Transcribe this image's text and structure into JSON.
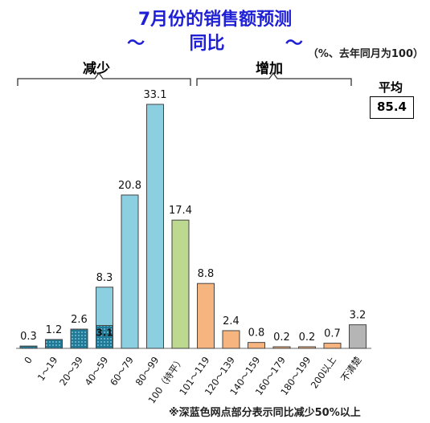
{
  "chart_data": {
    "type": "bar",
    "title_line1": "7月份的销售额预测",
    "title_line2_left": "～",
    "title_line2_mid": "同比",
    "title_line2_right": "～",
    "unit_note": "（%、去年同月为100）",
    "group_labels": {
      "decrease": "减少",
      "increase": "增加"
    },
    "average": {
      "label": "平均",
      "value": "85.4"
    },
    "footnote": "※深蓝色网点部分表示同比减少50%以上",
    "ylim": [
      0,
      35
    ],
    "categories": [
      "0",
      "1～19",
      "20～39",
      "40～59",
      "60～79",
      "80～99",
      "100（持平）",
      "101～119",
      "120～139",
      "140～159",
      "160～179",
      "180～199",
      "200以上",
      "不清楚"
    ],
    "values": [
      0.3,
      1.2,
      2.6,
      8.3,
      20.8,
      33.1,
      17.4,
      8.8,
      2.4,
      0.8,
      0.2,
      0.2,
      0.7,
      3.2
    ],
    "value_labels": [
      "0.3",
      "1.2",
      "2.6",
      "8.3",
      "20.8",
      "33.1",
      "17.4",
      "8.8",
      "2.4",
      "0.8",
      "0.2",
      "0.2",
      "0.7",
      "3.2"
    ],
    "dotted_values": [
      0.3,
      1.2,
      2.6,
      3.1,
      null,
      null,
      null,
      null,
      null,
      null,
      null,
      null,
      null,
      null
    ],
    "dotted_inner_label": {
      "index": 3,
      "text": "3.1"
    },
    "colors": {
      "decrease": "#8ccfe0",
      "dotted": "#1e7a96",
      "flat": "#bcd98f",
      "increase": "#f6b47f",
      "unknown": "#b5b5b5",
      "title": "#1f1fd6"
    },
    "bar_color_keys": [
      "decrease",
      "decrease",
      "decrease",
      "decrease",
      "decrease",
      "decrease",
      "flat",
      "increase",
      "increase",
      "increase",
      "increase",
      "increase",
      "increase",
      "unknown"
    ]
  }
}
